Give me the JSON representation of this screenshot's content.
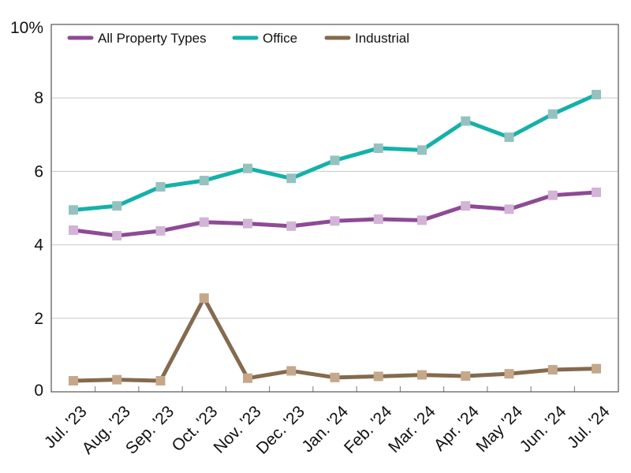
{
  "chart_data": {
    "type": "line",
    "title": "",
    "xlabel": "",
    "ylabel": "",
    "categories": [
      "Jul. '23",
      "Aug. '23",
      "Sep. '23",
      "Oct. '23",
      "Nov. '23",
      "Dec. '23",
      "Jan. '24",
      "Feb. '24",
      "Mar. '24",
      "Apr. '24",
      "May '24",
      "Jun. '24",
      "Jul. '24"
    ],
    "ylim": [
      0,
      10
    ],
    "yticks": [
      {
        "value": 0,
        "label": "0"
      },
      {
        "value": 2,
        "label": "2"
      },
      {
        "value": 4,
        "label": "4"
      },
      {
        "value": 6,
        "label": "6"
      },
      {
        "value": 8,
        "label": "8"
      },
      {
        "value": 10,
        "label": "10%"
      }
    ],
    "grid": "horizontal",
    "legend": "top-left",
    "series": [
      {
        "name": "All Property Types",
        "line_color": "#8e4a96",
        "marker_color": "#d2b4d6",
        "values": [
          4.4,
          4.25,
          4.38,
          4.62,
          4.58,
          4.51,
          4.65,
          4.7,
          4.67,
          5.06,
          4.97,
          5.35,
          5.43
        ]
      },
      {
        "name": "Office",
        "line_color": "#15b1a9",
        "marker_color": "#95c2c0",
        "values": [
          4.95,
          5.06,
          5.58,
          5.75,
          6.08,
          5.81,
          6.3,
          6.63,
          6.58,
          7.37,
          6.93,
          7.56,
          8.09
        ]
      },
      {
        "name": "Industrial",
        "line_color": "#846a4f",
        "marker_color": "#c5a88a",
        "values": [
          0.3,
          0.33,
          0.3,
          2.55,
          0.37,
          0.57,
          0.39,
          0.42,
          0.46,
          0.43,
          0.49,
          0.6,
          0.63
        ]
      }
    ]
  }
}
